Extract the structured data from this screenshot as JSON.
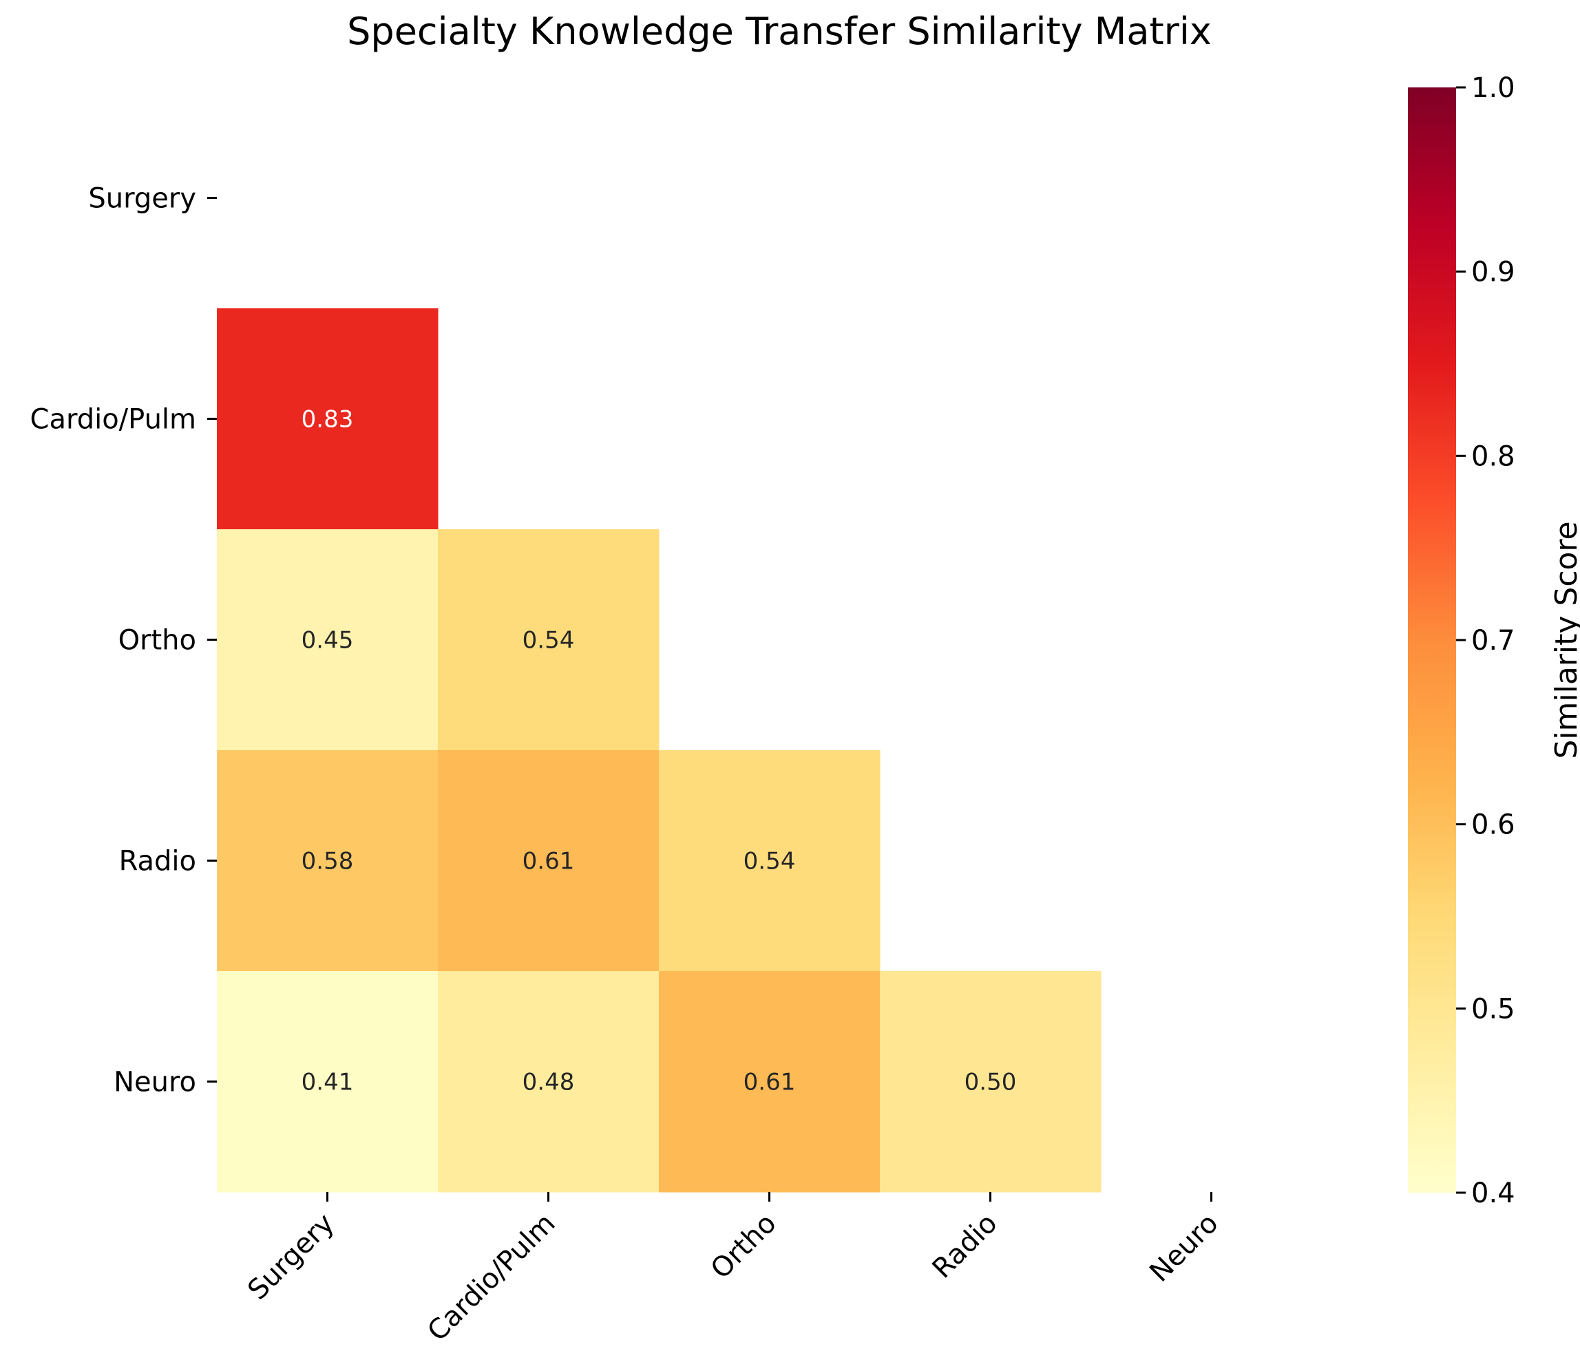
{
  "chart_data": {
    "type": "heatmap",
    "title": "Specialty Knowledge Transfer Similarity Matrix",
    "rows": [
      "Surgery",
      "Cardio/Pulm",
      "Ortho",
      "Radio",
      "Neuro"
    ],
    "columns": [
      "Surgery",
      "Cardio/Pulm",
      "Ortho",
      "Radio",
      "Neuro"
    ],
    "mask": "upper-triangle-including-diagonal",
    "cells": [
      {
        "row": "Cardio/Pulm",
        "col": "Surgery",
        "value": 0.83,
        "label": "0.83"
      },
      {
        "row": "Ortho",
        "col": "Surgery",
        "value": 0.45,
        "label": "0.45"
      },
      {
        "row": "Ortho",
        "col": "Cardio/Pulm",
        "value": 0.54,
        "label": "0.54"
      },
      {
        "row": "Radio",
        "col": "Surgery",
        "value": 0.58,
        "label": "0.58"
      },
      {
        "row": "Radio",
        "col": "Cardio/Pulm",
        "value": 0.61,
        "label": "0.61"
      },
      {
        "row": "Radio",
        "col": "Ortho",
        "value": 0.54,
        "label": "0.54"
      },
      {
        "row": "Neuro",
        "col": "Surgery",
        "value": 0.41,
        "label": "0.41"
      },
      {
        "row": "Neuro",
        "col": "Cardio/Pulm",
        "value": 0.48,
        "label": "0.48"
      },
      {
        "row": "Neuro",
        "col": "Ortho",
        "value": 0.61,
        "label": "0.61"
      },
      {
        "row": "Neuro",
        "col": "Radio",
        "value": 0.5,
        "label": "0.50"
      }
    ],
    "colorbar": {
      "label": "Similarity Score",
      "range": [
        0.4,
        1.0
      ],
      "ticks": [
        "0.4",
        "0.5",
        "0.6",
        "0.7",
        "0.8",
        "0.9",
        "1.0"
      ],
      "colormap": "YlOrRd"
    }
  }
}
